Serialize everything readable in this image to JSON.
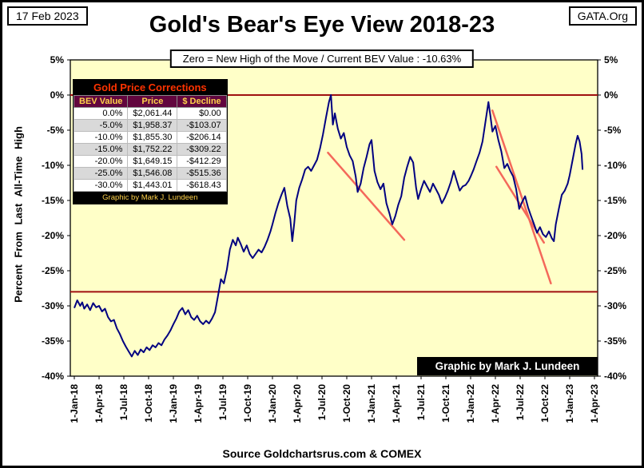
{
  "header": {
    "date": "17 Feb 2023",
    "org": "GATA.Org",
    "title": "Gold's Bear's Eye View 2018-23",
    "subtitle": "Zero = New High of the Move / Current  BEV Value : -10.63%"
  },
  "corrections_table": {
    "title": "Gold Price Corrections",
    "columns": [
      "BEV Value",
      "Price",
      "$ Decline"
    ],
    "rows": [
      [
        "0.0%",
        "$2,061.44",
        "$0.00"
      ],
      [
        "-5.0%",
        "$1,958.37",
        "-$103.07"
      ],
      [
        "-10.0%",
        "$1,855.30",
        "-$206.14"
      ],
      [
        "-15.0%",
        "$1,752.22",
        "-$309.22"
      ],
      [
        "-20.0%",
        "$1,649.15",
        "-$412.29"
      ],
      [
        "-25.0%",
        "$1,546.08",
        "-$515.36"
      ],
      [
        "-30.0%",
        "$1,443.01",
        "-$618.43"
      ]
    ],
    "footer": "Graphic by Mark J. Lundeen"
  },
  "credit_box": "Graphic by Mark J. Lundeen",
  "footer": {
    "source": "Source Goldchartsrus.com & COMEX"
  },
  "colors": {
    "line": "#000080",
    "plot_bg": "#FFFFC8",
    "ref_line": "#A01010",
    "trend_line": "#F4685A",
    "table_title_fg": "#FF3300",
    "table_header_bg": "#62063E",
    "table_header_fg": "#FFD24A"
  },
  "chart_data": {
    "type": "line",
    "title": "Gold's Bear's Eye View 2018-23",
    "ylabel": "Percent From Last All-Time High",
    "xlabel": "",
    "xlim": [
      2018.0,
      2023.25
    ],
    "ylim": [
      -40,
      5
    ],
    "grid": false,
    "y_ticks": [
      5,
      0,
      -5,
      -10,
      -15,
      -20,
      -25,
      -30,
      -35,
      -40
    ],
    "y_tick_suffix": "%",
    "x_ticks": [
      2018.0,
      2018.25,
      2018.5,
      2018.75,
      2019.0,
      2019.25,
      2019.5,
      2019.75,
      2020.0,
      2020.25,
      2020.5,
      2020.75,
      2021.0,
      2021.25,
      2021.5,
      2021.75,
      2022.0,
      2022.25,
      2022.5,
      2022.75,
      2023.0,
      2023.25
    ],
    "x_tick_labels": [
      "1-Jan-18",
      "1-Apr-18",
      "1-Jul-18",
      "1-Oct-18",
      "1-Jan-19",
      "1-Apr-19",
      "1-Jul-19",
      "1-Oct-19",
      "1-Jan-20",
      "1-Apr-20",
      "1-Jul-20",
      "1-Oct-20",
      "1-Jan-21",
      "1-Apr-21",
      "1-Jul-21",
      "1-Oct-21",
      "1-Jan-22",
      "1-Apr-22",
      "1-Jul-22",
      "1-Oct-22",
      "1-Jan-23",
      "1-Apr-23"
    ],
    "ref_lines_y": [
      0,
      -28
    ],
    "trend_lines": [
      [
        2020.56,
        -8.2,
        2021.33,
        -20.6
      ],
      [
        2022.22,
        -2.2,
        2022.81,
        -26.8
      ],
      [
        2022.26,
        -10.2,
        2022.74,
        -21.0
      ]
    ],
    "current_value": -10.63,
    "series": [
      {
        "name": "Gold Bear's Eye View (% from last all-time high)",
        "color": "#000080",
        "points": [
          [
            2018.0,
            -30.3
          ],
          [
            2018.03,
            -29.2
          ],
          [
            2018.06,
            -30.0
          ],
          [
            2018.08,
            -29.5
          ],
          [
            2018.1,
            -30.4
          ],
          [
            2018.13,
            -29.8
          ],
          [
            2018.16,
            -30.6
          ],
          [
            2018.19,
            -29.6
          ],
          [
            2018.22,
            -30.2
          ],
          [
            2018.25,
            -30.0
          ],
          [
            2018.28,
            -30.8
          ],
          [
            2018.31,
            -30.4
          ],
          [
            2018.34,
            -31.6
          ],
          [
            2018.37,
            -32.2
          ],
          [
            2018.4,
            -32.0
          ],
          [
            2018.43,
            -33.2
          ],
          [
            2018.46,
            -34.0
          ],
          [
            2018.49,
            -35.0
          ],
          [
            2018.52,
            -35.8
          ],
          [
            2018.55,
            -36.5
          ],
          [
            2018.58,
            -37.2
          ],
          [
            2018.61,
            -36.4
          ],
          [
            2018.64,
            -37.0
          ],
          [
            2018.67,
            -36.2
          ],
          [
            2018.7,
            -36.6
          ],
          [
            2018.73,
            -35.9
          ],
          [
            2018.76,
            -36.3
          ],
          [
            2018.79,
            -35.6
          ],
          [
            2018.82,
            -35.9
          ],
          [
            2018.85,
            -35.3
          ],
          [
            2018.88,
            -35.6
          ],
          [
            2018.91,
            -34.8
          ],
          [
            2018.94,
            -34.2
          ],
          [
            2018.97,
            -33.5
          ],
          [
            2019.0,
            -32.6
          ],
          [
            2019.03,
            -31.8
          ],
          [
            2019.06,
            -30.8
          ],
          [
            2019.09,
            -30.3
          ],
          [
            2019.12,
            -31.2
          ],
          [
            2019.15,
            -30.6
          ],
          [
            2019.18,
            -31.6
          ],
          [
            2019.21,
            -32.0
          ],
          [
            2019.24,
            -31.4
          ],
          [
            2019.27,
            -32.2
          ],
          [
            2019.3,
            -32.6
          ],
          [
            2019.33,
            -32.1
          ],
          [
            2019.36,
            -32.5
          ],
          [
            2019.39,
            -31.8
          ],
          [
            2019.42,
            -30.9
          ],
          [
            2019.45,
            -28.6
          ],
          [
            2019.48,
            -26.2
          ],
          [
            2019.51,
            -26.8
          ],
          [
            2019.54,
            -24.8
          ],
          [
            2019.57,
            -22.0
          ],
          [
            2019.6,
            -20.6
          ],
          [
            2019.63,
            -21.4
          ],
          [
            2019.65,
            -20.3
          ],
          [
            2019.68,
            -21.2
          ],
          [
            2019.71,
            -22.3
          ],
          [
            2019.74,
            -21.4
          ],
          [
            2019.77,
            -22.6
          ],
          [
            2019.8,
            -23.2
          ],
          [
            2019.83,
            -22.6
          ],
          [
            2019.86,
            -22.0
          ],
          [
            2019.89,
            -22.4
          ],
          [
            2019.92,
            -21.6
          ],
          [
            2019.95,
            -20.6
          ],
          [
            2019.98,
            -19.4
          ],
          [
            2020.0,
            -18.4
          ],
          [
            2020.03,
            -16.8
          ],
          [
            2020.06,
            -15.4
          ],
          [
            2020.09,
            -14.2
          ],
          [
            2020.12,
            -13.2
          ],
          [
            2020.15,
            -15.8
          ],
          [
            2020.18,
            -17.6
          ],
          [
            2020.2,
            -20.8
          ],
          [
            2020.22,
            -18.2
          ],
          [
            2020.24,
            -15.0
          ],
          [
            2020.27,
            -13.2
          ],
          [
            2020.3,
            -12.0
          ],
          [
            2020.33,
            -10.6
          ],
          [
            2020.36,
            -10.2
          ],
          [
            2020.39,
            -10.8
          ],
          [
            2020.42,
            -10.0
          ],
          [
            2020.45,
            -9.2
          ],
          [
            2020.48,
            -7.6
          ],
          [
            2020.51,
            -5.6
          ],
          [
            2020.54,
            -3.2
          ],
          [
            2020.57,
            -1.0
          ],
          [
            2020.59,
            0.0
          ],
          [
            2020.61,
            -4.2
          ],
          [
            2020.63,
            -2.6
          ],
          [
            2020.66,
            -4.8
          ],
          [
            2020.69,
            -6.2
          ],
          [
            2020.72,
            -5.4
          ],
          [
            2020.75,
            -7.4
          ],
          [
            2020.78,
            -8.6
          ],
          [
            2020.81,
            -9.4
          ],
          [
            2020.84,
            -11.6
          ],
          [
            2020.86,
            -13.8
          ],
          [
            2020.89,
            -12.6
          ],
          [
            2020.92,
            -10.4
          ],
          [
            2020.95,
            -8.8
          ],
          [
            2020.98,
            -7.0
          ],
          [
            2021.0,
            -6.4
          ],
          [
            2021.03,
            -10.8
          ],
          [
            2021.06,
            -12.4
          ],
          [
            2021.09,
            -13.4
          ],
          [
            2021.12,
            -12.6
          ],
          [
            2021.15,
            -15.4
          ],
          [
            2021.18,
            -16.8
          ],
          [
            2021.21,
            -18.4
          ],
          [
            2021.24,
            -17.2
          ],
          [
            2021.27,
            -15.6
          ],
          [
            2021.3,
            -14.4
          ],
          [
            2021.33,
            -11.8
          ],
          [
            2021.36,
            -10.2
          ],
          [
            2021.39,
            -8.8
          ],
          [
            2021.42,
            -9.6
          ],
          [
            2021.45,
            -13.2
          ],
          [
            2021.47,
            -14.8
          ],
          [
            2021.5,
            -13.4
          ],
          [
            2021.53,
            -12.2
          ],
          [
            2021.56,
            -13.0
          ],
          [
            2021.59,
            -13.8
          ],
          [
            2021.62,
            -12.6
          ],
          [
            2021.65,
            -13.4
          ],
          [
            2021.68,
            -14.2
          ],
          [
            2021.71,
            -15.4
          ],
          [
            2021.74,
            -14.6
          ],
          [
            2021.77,
            -13.6
          ],
          [
            2021.8,
            -12.4
          ],
          [
            2021.83,
            -10.8
          ],
          [
            2021.86,
            -12.2
          ],
          [
            2021.89,
            -13.6
          ],
          [
            2021.92,
            -13.0
          ],
          [
            2021.95,
            -12.8
          ],
          [
            2021.98,
            -12.2
          ],
          [
            2022.0,
            -11.6
          ],
          [
            2022.03,
            -10.6
          ],
          [
            2022.06,
            -9.4
          ],
          [
            2022.09,
            -8.2
          ],
          [
            2022.12,
            -6.6
          ],
          [
            2022.15,
            -3.8
          ],
          [
            2022.18,
            -1.0
          ],
          [
            2022.2,
            -3.0
          ],
          [
            2022.22,
            -5.2
          ],
          [
            2022.25,
            -4.4
          ],
          [
            2022.28,
            -6.4
          ],
          [
            2022.31,
            -8.0
          ],
          [
            2022.34,
            -10.4
          ],
          [
            2022.37,
            -9.8
          ],
          [
            2022.4,
            -10.8
          ],
          [
            2022.43,
            -11.6
          ],
          [
            2022.46,
            -13.4
          ],
          [
            2022.49,
            -16.2
          ],
          [
            2022.52,
            -15.2
          ],
          [
            2022.55,
            -14.4
          ],
          [
            2022.58,
            -16.0
          ],
          [
            2022.61,
            -17.2
          ],
          [
            2022.64,
            -18.4
          ],
          [
            2022.67,
            -19.6
          ],
          [
            2022.7,
            -18.8
          ],
          [
            2022.73,
            -19.8
          ],
          [
            2022.76,
            -20.2
          ],
          [
            2022.79,
            -19.4
          ],
          [
            2022.82,
            -20.4
          ],
          [
            2022.84,
            -20.8
          ],
          [
            2022.86,
            -18.4
          ],
          [
            2022.89,
            -16.2
          ],
          [
            2022.92,
            -14.2
          ],
          [
            2022.95,
            -13.6
          ],
          [
            2022.98,
            -12.6
          ],
          [
            2023.0,
            -11.4
          ],
          [
            2023.03,
            -9.2
          ],
          [
            2023.06,
            -7.0
          ],
          [
            2023.08,
            -5.8
          ],
          [
            2023.1,
            -6.6
          ],
          [
            2023.12,
            -8.4
          ],
          [
            2023.13,
            -10.63
          ]
        ]
      }
    ]
  }
}
